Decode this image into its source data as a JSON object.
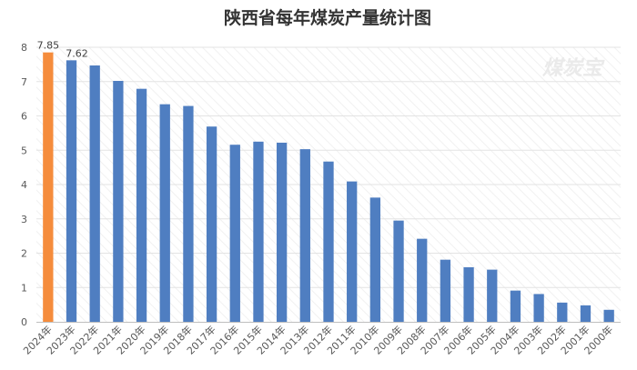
{
  "watermark": "煤炭宝",
  "colors": {
    "highlight": "#F58C3C",
    "bar": "#4F7EC1",
    "grid": "#E3E3E3"
  },
  "chart_data": {
    "type": "bar",
    "title": "陕西省每年煤炭产量统计图",
    "xlabel": "",
    "ylabel": "",
    "ylim": [
      0,
      8
    ],
    "yticks": [
      0,
      1,
      2,
      3,
      4,
      5,
      6,
      7,
      8
    ],
    "grid": true,
    "legend": "none",
    "categories": [
      "2024年",
      "2023年",
      "2022年",
      "2021年",
      "2020年",
      "2019年",
      "2018年",
      "2017年",
      "2016年",
      "2015年",
      "2014年",
      "2013年",
      "2012年",
      "2011年",
      "2010年",
      "2009年",
      "2008年",
      "2007年",
      "2006年",
      "2005年",
      "2004年",
      "2003年",
      "2002年",
      "2001年",
      "2000年"
    ],
    "values": [
      7.85,
      7.62,
      7.47,
      7.02,
      6.79,
      6.34,
      6.29,
      5.69,
      5.16,
      5.25,
      5.22,
      5.03,
      4.67,
      4.09,
      3.62,
      2.95,
      2.42,
      1.81,
      1.59,
      1.52,
      0.91,
      0.81,
      0.56,
      0.48,
      0.35
    ],
    "highlight_index": 0,
    "data_labels": [
      {
        "index": 0,
        "text": "7.85"
      },
      {
        "index": 1,
        "text": "7.62"
      }
    ]
  }
}
